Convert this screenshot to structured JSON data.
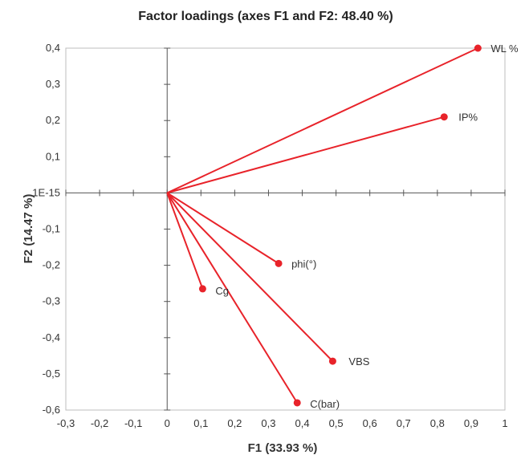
{
  "chart_data": {
    "type": "scatter",
    "title": "Factor loadings (axes F1 and F2: 48.40 %)",
    "xlabel": "F1 (33.93 %)",
    "ylabel": "F2 (14.47 %)",
    "xlim": [
      -0.3,
      1.0
    ],
    "ylim": [
      -0.6,
      0.4
    ],
    "x_ticks": [
      -0.3,
      -0.2,
      -0.1,
      0,
      0.1,
      0.2,
      0.3,
      0.4,
      0.5,
      0.6,
      0.7,
      0.8,
      0.9,
      1.0
    ],
    "x_tick_labels": [
      "-0,3",
      "-0,2",
      "-0,1",
      "0",
      "0,1",
      "0,2",
      "0,3",
      "0,4",
      "0,5",
      "0,6",
      "0,7",
      "0,8",
      "0,9",
      "1"
    ],
    "y_ticks": [
      0.4,
      0.3,
      0.2,
      0.1,
      0,
      -0.1,
      -0.2,
      -0.3,
      -0.4,
      -0.5,
      -0.6
    ],
    "y_tick_labels": [
      "0,4",
      "0,3",
      "0,2",
      "0,1",
      "1E-15",
      "-0,1",
      "-0,2",
      "-0,3",
      "-0,4",
      "-0,5",
      "-0,6"
    ],
    "grid": false,
    "legend": "none",
    "vectors_from_origin": true,
    "color": "#e8232a",
    "points": [
      {
        "label": "WL %",
        "x": 0.92,
        "y": 0.4
      },
      {
        "label": "IP%",
        "x": 0.82,
        "y": 0.21
      },
      {
        "label": "phi(°)",
        "x": 0.33,
        "y": -0.195
      },
      {
        "label": "Cg",
        "x": 0.105,
        "y": -0.265
      },
      {
        "label": "VBS",
        "x": 0.49,
        "y": -0.465
      },
      {
        "label": "C(bar)",
        "x": 0.385,
        "y": -0.58
      }
    ]
  }
}
